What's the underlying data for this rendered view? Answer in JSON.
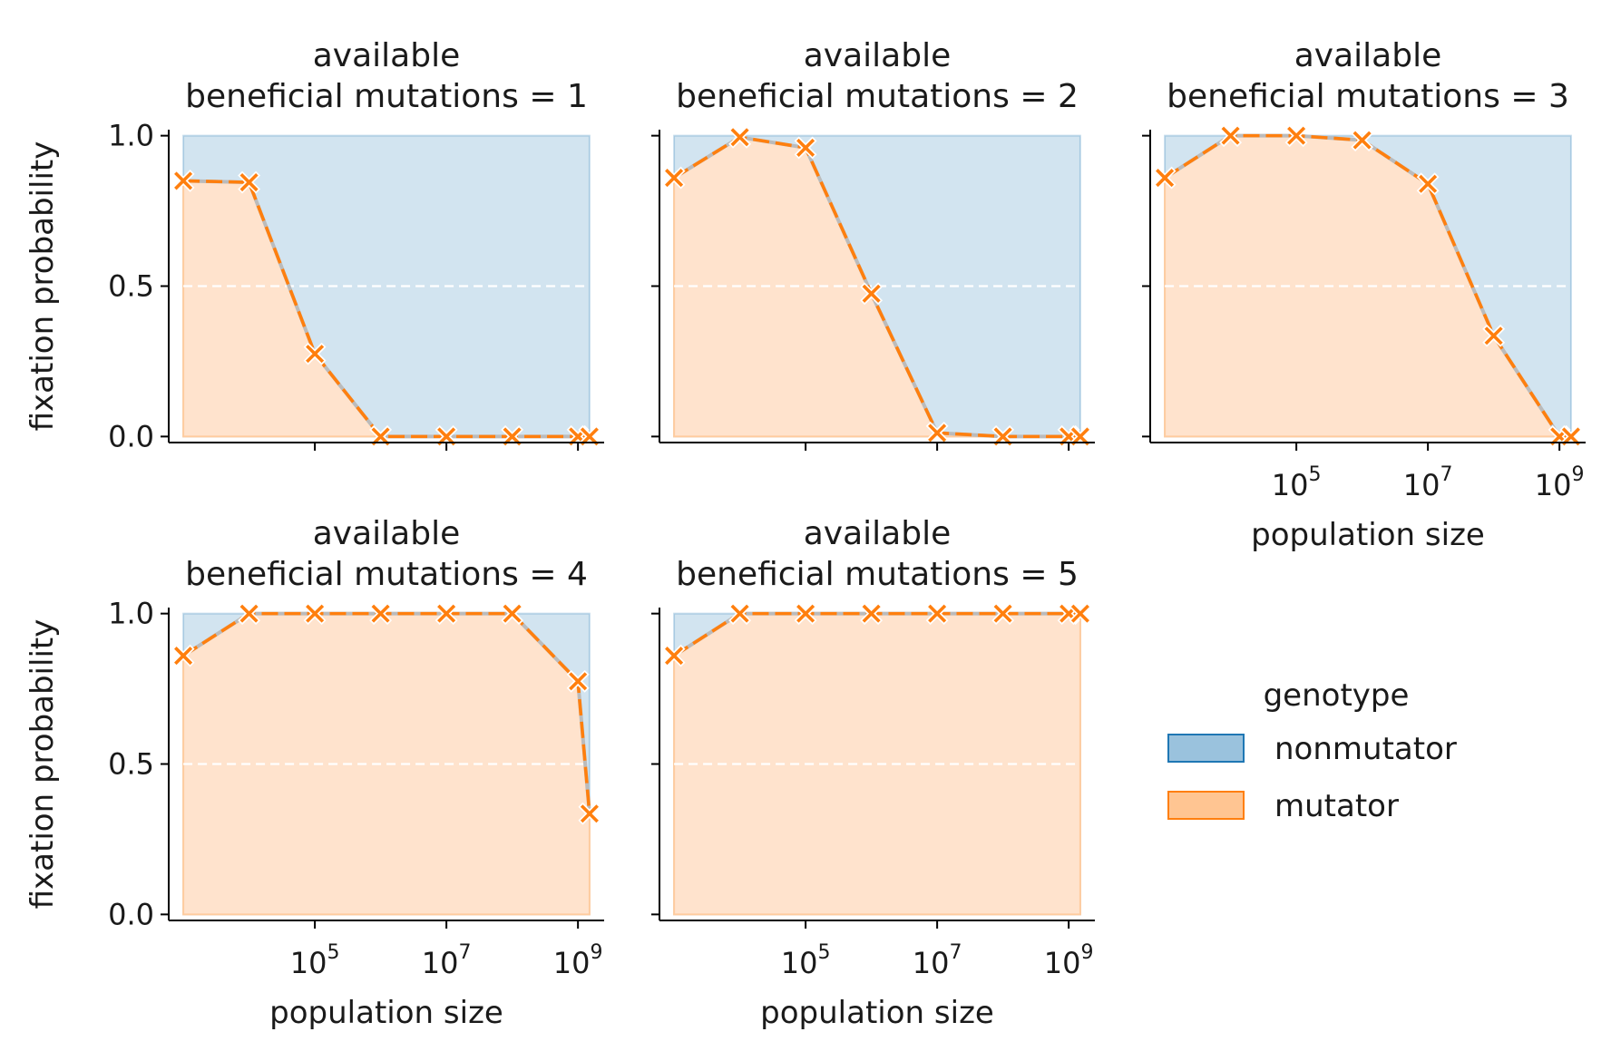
{
  "chart_data": {
    "type": "area",
    "facet_title_prefix": "available",
    "facet_title_line2": "beneficial mutations = ",
    "xlabel": "population size",
    "ylabel": "fixation probability",
    "x_scale": "log10",
    "x": [
      1000,
      10000,
      100000,
      1000000,
      10000000,
      100000000,
      1000000000,
      1500000000
    ],
    "xlim": [
      600,
      2500000000
    ],
    "ylim": [
      -0.02,
      1.02
    ],
    "x_ticks": [
      {
        "value": 100000,
        "base": "10",
        "exp": "5"
      },
      {
        "value": 10000000,
        "base": "10",
        "exp": "7"
      },
      {
        "value": 1000000000,
        "base": "10",
        "exp": "9"
      }
    ],
    "y_ticks": [
      {
        "value": 0,
        "label": "0.0"
      },
      {
        "value": 0.5,
        "label": "0.5"
      },
      {
        "value": 1,
        "label": "1.0"
      }
    ],
    "reference_line": 0.5,
    "grid": false,
    "legend": {
      "title": "genotype",
      "placement": "right",
      "entries": [
        "nonmutator",
        "mutator"
      ]
    },
    "colors": {
      "nonmutator": "#1f77b4",
      "mutator": "#ff7f0e",
      "connector": "#bbbbbb",
      "reference": "#ffffff"
    },
    "panels": [
      {
        "mutations": "1",
        "x": [
          1000,
          10000,
          100000,
          1000000,
          10000000,
          100000000,
          1000000000,
          1500000000
        ],
        "mutator_fixation_probability": [
          0.85,
          0.845,
          0.275,
          0.0,
          0.0,
          0.0,
          0.0,
          0.0
        ]
      },
      {
        "mutations": "2",
        "x": [
          1000,
          10000,
          100000,
          1000000,
          10000000,
          100000000,
          1000000000,
          1500000000
        ],
        "mutator_fixation_probability": [
          0.86,
          0.995,
          0.96,
          0.475,
          0.012,
          0.0,
          0.0,
          0.0
        ]
      },
      {
        "mutations": "3",
        "x": [
          1000,
          10000,
          100000,
          1000000,
          10000000,
          100000000,
          1000000000,
          1500000000
        ],
        "mutator_fixation_probability": [
          0.86,
          1.0,
          1.0,
          0.985,
          0.84,
          0.335,
          0.0,
          0.0
        ]
      },
      {
        "mutations": "4",
        "x": [
          1000,
          10000,
          100000,
          1000000,
          10000000,
          100000000,
          1000000000,
          1500000000
        ],
        "mutator_fixation_probability": [
          0.86,
          1.0,
          1.0,
          1.0,
          1.0,
          1.0,
          0.775,
          0.335
        ]
      },
      {
        "mutations": "5",
        "x": [
          1000,
          10000,
          100000,
          1000000,
          10000000,
          100000000,
          1000000000,
          1500000000
        ],
        "mutator_fixation_probability": [
          0.86,
          1.0,
          1.0,
          1.0,
          1.0,
          1.0,
          1.0,
          1.0
        ]
      }
    ]
  }
}
